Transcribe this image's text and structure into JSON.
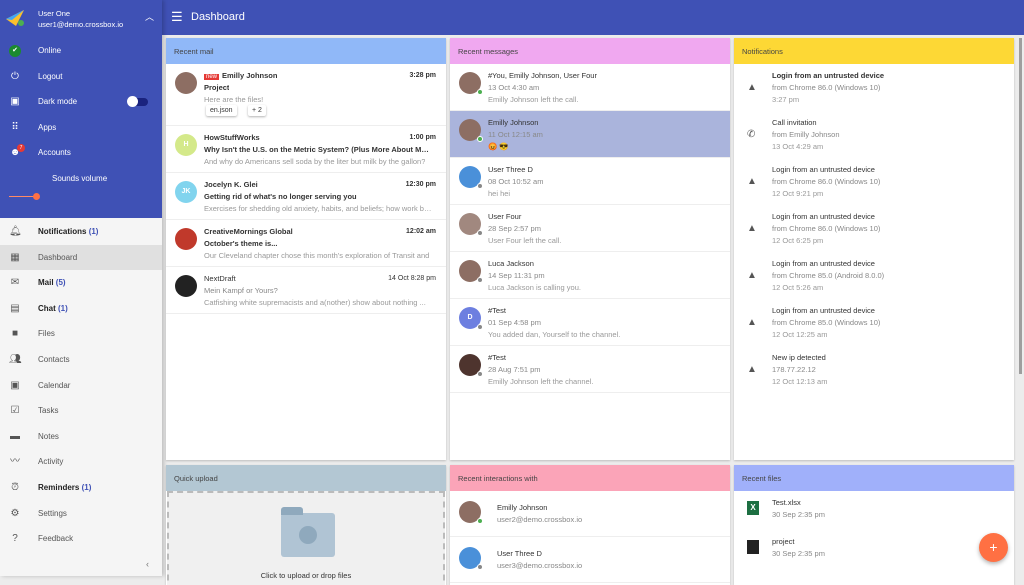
{
  "header": {
    "title": "Dashboard",
    "menu_icon": "hamburger-icon"
  },
  "account": {
    "name": "User One",
    "email": "user1@demo.crossbox.io",
    "items": [
      {
        "label": "Online",
        "icon": "check-circle-icon",
        "color": "#1b8a2f"
      },
      {
        "label": "Logout",
        "icon": "power-icon"
      },
      {
        "label": "Dark mode",
        "icon": "picture-in-picture-icon",
        "toggle": false
      },
      {
        "label": "Apps",
        "icon": "apps-grid-icon"
      },
      {
        "label": "Accounts",
        "icon": "accounts-icon",
        "badge": "7"
      }
    ],
    "sounds_volume_label": "Sounds volume",
    "volume": 0.15
  },
  "nav": [
    {
      "label": "Notifications",
      "count": "(1)",
      "icon": "bell-icon",
      "bold": true
    },
    {
      "label": "Dashboard",
      "icon": "dashboard-icon",
      "active": true
    },
    {
      "label": "Mail",
      "count": "(5)",
      "icon": "mail-icon",
      "bold": true
    },
    {
      "label": "Chat",
      "count": "(1)",
      "icon": "chat-icon",
      "bold": true
    },
    {
      "label": "Files",
      "icon": "folder-icon"
    },
    {
      "label": "Contacts",
      "icon": "contacts-icon"
    },
    {
      "label": "Calendar",
      "icon": "calendar-icon"
    },
    {
      "label": "Tasks",
      "icon": "tasks-icon"
    },
    {
      "label": "Notes",
      "icon": "notes-icon"
    },
    {
      "label": "Activity",
      "icon": "activity-icon"
    },
    {
      "label": "Reminders",
      "count": "(1)",
      "icon": "reminder-bell-icon",
      "bold": true
    },
    {
      "label": "Settings",
      "icon": "gear-icon"
    },
    {
      "label": "Feedback",
      "icon": "help-icon"
    }
  ],
  "recent_mail": {
    "title": "Recent mail",
    "color": "#90b8f8",
    "items": [
      {
        "from": "Emilly Johnson",
        "new": "new",
        "subject": "Project",
        "preview": "Here are the files!",
        "time": "3:28 pm",
        "attachments": [
          "en.json",
          "+ 2"
        ],
        "avatar": "#8d6e63"
      },
      {
        "from": "HowStuffWorks",
        "subject": "Why Isn't the U.S. on the Metric System? (Plus More About Measurement)",
        "preview": "And why do Americans sell soda by the liter but milk by the gallon?",
        "time": "1:00 pm",
        "initials": "H",
        "avatar": "#d4e98a"
      },
      {
        "from": "Jocelyn K. Glei",
        "subject": "Getting rid of what's no longer serving you",
        "preview": "Exercises for shedding old anxiety, habits, and beliefs; how work boundaries",
        "time": "12:30 pm",
        "initials": "JK",
        "avatar": "#81d4ee"
      },
      {
        "from": "CreativeMornings Global",
        "subject": "October's theme is...",
        "preview": "Our Cleveland chapter chose this month's exploration of Transit and",
        "time": "12:02 am",
        "avatar": "#c0392b"
      },
      {
        "from": "NextDraft",
        "subject": "Mein Kampf or Yours?",
        "preview": "Catfishing white supremacists and a(nother) show about nothing ...",
        "time": "14 Oct 8:28 pm",
        "read": true,
        "avatar": "#222"
      }
    ]
  },
  "recent_messages": {
    "title": "Recent messages",
    "color": "#f0a8f0",
    "items": [
      {
        "name": "#You, Emilly Johnson, User Four",
        "date": "13 Oct 4:30 am",
        "text": "Emilly Johnson left the call.",
        "online": true,
        "avatar": "#8d6e63"
      },
      {
        "name": "Emilly Johnson",
        "date": "11 Oct 12:15 am",
        "text": "😡 😎",
        "online": true,
        "selected": true,
        "avatar": "#8d6e63"
      },
      {
        "name": "User Three D",
        "date": "08 Oct 10:52 am",
        "text": "hei hei",
        "avatar": "#4a90d9"
      },
      {
        "name": "User Four",
        "date": "28 Sep 2:57 pm",
        "text": "User Four left the call.",
        "avatar": "#a1887f"
      },
      {
        "name": "Luca Jackson",
        "date": "14 Sep 11:31 pm",
        "text": "Luca Jackson is calling you.",
        "avatar": "#8d6e63"
      },
      {
        "name": "#Test",
        "date": "01 Sep 4:58 pm",
        "text": "You added dan, Yourself to the channel.",
        "initials": "D",
        "avatar": "#6d7fe0"
      },
      {
        "name": "#Test",
        "date": "28 Aug 7:51 pm",
        "text": "Emilly Johnson left the channel.",
        "avatar": "#4e342e"
      }
    ]
  },
  "notifications": {
    "title": "Notifications",
    "color": "#fdd835",
    "items": [
      {
        "title": "Login from an untrusted device",
        "detail": "from Chrome 86.0 (Windows 10)",
        "time": "3:27 pm",
        "icon": "warning-icon",
        "bold": true
      },
      {
        "title": "Call invitation",
        "detail": "from Emilly Johnson",
        "time": "13 Oct 4:29 am",
        "icon": "phone-icon"
      },
      {
        "title": "Login from an untrusted device",
        "detail": "from Chrome 86.0 (Windows 10)",
        "time": "12 Oct 9:21 pm",
        "icon": "warning-icon"
      },
      {
        "title": "Login from an untrusted device",
        "detail": "from Chrome 86.0 (Windows 10)",
        "time": "12 Oct 6:25 pm",
        "icon": "warning-icon"
      },
      {
        "title": "Login from an untrusted device",
        "detail": "from Chrome 85.0 (Android 8.0.0)",
        "time": "12 Oct 5:26 am",
        "icon": "warning-icon"
      },
      {
        "title": "Login from an untrusted device",
        "detail": "from Chrome 85.0 (Windows 10)",
        "time": "12 Oct 12:25 am",
        "icon": "warning-icon"
      },
      {
        "title": "New ip detected",
        "detail": "178.77.22.12",
        "time": "12 Oct 12:13 am",
        "icon": "warning-icon"
      }
    ]
  },
  "quick_upload": {
    "title": "Quick upload",
    "color": "#b3c7d3",
    "text": "Click to upload or drop files"
  },
  "recent_interactions": {
    "title": "Recent interactions with",
    "color": "#fba4b8",
    "items": [
      {
        "name": "Emilly Johnson",
        "email": "user2@demo.crossbox.io",
        "online": true,
        "avatar": "#8d6e63"
      },
      {
        "name": "User Three D",
        "email": "user3@demo.crossbox.io",
        "avatar": "#4a90d9"
      }
    ]
  },
  "recent_files": {
    "title": "Recent files",
    "color": "#a0b0fa",
    "items": [
      {
        "name": "Test.xlsx",
        "date": "30 Sep 2:35 pm",
        "icon": "excel-file-icon"
      },
      {
        "name": "project",
        "date": "30 Sep 2:35 pm",
        "icon": "folder-icon"
      }
    ]
  },
  "fab": {
    "label": "+"
  }
}
